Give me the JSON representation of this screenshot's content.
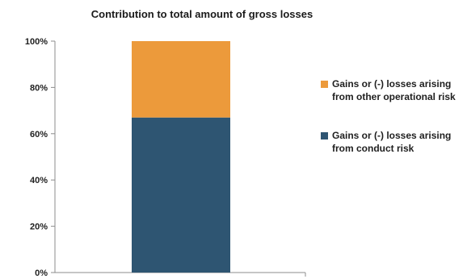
{
  "chart_data": {
    "type": "bar",
    "stacked": true,
    "title": "Contribution to total amount of gross losses",
    "categories": [
      ""
    ],
    "ylim": [
      0,
      100
    ],
    "yticks": [
      "0%",
      "20%",
      "40%",
      "60%",
      "80%",
      "100%"
    ],
    "grid": false,
    "legend_position": "right",
    "series": [
      {
        "name": "Gains or (-) losses arising from conduct risk",
        "values": [
          67
        ],
        "color": "#2e5572"
      },
      {
        "name": "Gains or (-) losses arising from other operational risk",
        "values": [
          33
        ],
        "color": "#ec9a3b"
      }
    ]
  }
}
